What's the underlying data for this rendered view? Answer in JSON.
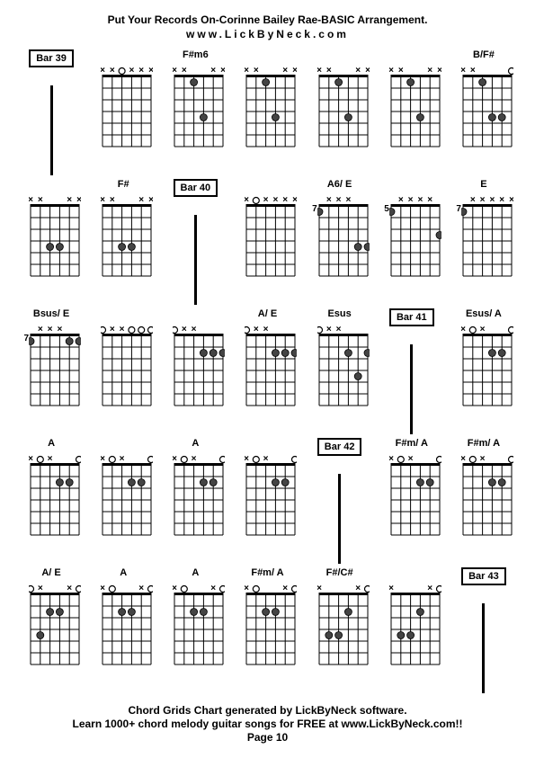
{
  "title": "Put Your Records On-Corinne Bailey Rae-BASIC Arrangement.",
  "url": "www.LickByNeck.com",
  "footer1": "Chord Grids Chart generated by LickByNeck software.",
  "footer2": "Learn 1000+ chord melody guitar songs for FREE at www.LickByNeck.com!!",
  "page": "Page 10",
  "diagram": {
    "strings": 6,
    "frets": 6,
    "width": 54,
    "height": 78,
    "marker_x": "×",
    "marker_o": "○",
    "dot_radius": 4,
    "colors": {
      "line": "#000000",
      "dot_fill": "#444444",
      "dot_stroke": "#000000",
      "open_stroke": "#000000"
    }
  },
  "cells": [
    {
      "type": "bar",
      "label": "Bar 39"
    },
    {
      "type": "chord",
      "label": "",
      "top": [
        "x",
        "x",
        "o",
        "x",
        "x",
        "x"
      ],
      "dots": [],
      "fret": ""
    },
    {
      "type": "chord",
      "label": "F#m6",
      "top": [
        "x",
        "x",
        "",
        "",
        "x",
        "x"
      ],
      "dots": [
        [
          3,
          1
        ],
        [
          4,
          4
        ]
      ],
      "fret": ""
    },
    {
      "type": "chord",
      "label": "",
      "top": [
        "x",
        "x",
        "",
        "",
        "x",
        "x"
      ],
      "dots": [
        [
          3,
          1
        ],
        [
          4,
          4
        ]
      ],
      "fret": ""
    },
    {
      "type": "chord",
      "label": "",
      "top": [
        "x",
        "x",
        "",
        "",
        "x",
        "x"
      ],
      "dots": [
        [
          3,
          1
        ],
        [
          4,
          4
        ]
      ],
      "fret": ""
    },
    {
      "type": "chord",
      "label": "",
      "top": [
        "x",
        "x",
        "",
        "",
        "x",
        "x"
      ],
      "dots": [
        [
          3,
          1
        ],
        [
          4,
          4
        ]
      ],
      "fret": ""
    },
    {
      "type": "chord",
      "label": "B/F#",
      "top": [
        "x",
        "x",
        "",
        "",
        "",
        "o"
      ],
      "dots": [
        [
          3,
          1
        ],
        [
          4,
          4
        ],
        [
          5,
          4
        ]
      ],
      "fret": ""
    },
    {
      "type": "chord",
      "label": "",
      "top": [
        "x",
        "x",
        "",
        "",
        "x",
        "x"
      ],
      "dots": [
        [
          3,
          4
        ],
        [
          4,
          4
        ]
      ],
      "fret": ""
    },
    {
      "type": "chord",
      "label": "F#",
      "top": [
        "x",
        "x",
        "",
        "",
        "x",
        "x"
      ],
      "dots": [
        [
          3,
          4
        ],
        [
          4,
          4
        ]
      ],
      "fret": ""
    },
    {
      "type": "bar",
      "label": "Bar 40"
    },
    {
      "type": "chord",
      "label": "",
      "top": [
        "x",
        "o",
        "x",
        "x",
        "x",
        "x"
      ],
      "dots": [],
      "fret": ""
    },
    {
      "type": "chord",
      "label": "A6/ E",
      "top": [
        "",
        "x",
        "x",
        "x",
        "",
        ""
      ],
      "dots": [
        [
          1,
          1
        ],
        [
          5,
          4
        ],
        [
          6,
          4
        ]
      ],
      "fret": "7"
    },
    {
      "type": "chord",
      "label": "",
      "top": [
        "",
        "x",
        "x",
        "x",
        "x",
        ""
      ],
      "dots": [
        [
          1,
          1
        ],
        [
          6,
          3
        ]
      ],
      "fret": "5"
    },
    {
      "type": "chord",
      "label": "E",
      "top": [
        "",
        "x",
        "x",
        "x",
        "x",
        "x"
      ],
      "dots": [
        [
          1,
          1
        ]
      ],
      "fret": "7"
    },
    {
      "type": "chord",
      "label": "Bsus/ E",
      "top": [
        "",
        "x",
        "x",
        "x",
        "",
        ""
      ],
      "dots": [
        [
          1,
          1
        ],
        [
          5,
          1
        ],
        [
          6,
          1
        ]
      ],
      "fret": "7"
    },
    {
      "type": "chord",
      "label": "",
      "top": [
        "o",
        "x",
        "x",
        "o",
        "o",
        "o"
      ],
      "dots": [],
      "fret": ""
    },
    {
      "type": "chord",
      "label": "",
      "top": [
        "o",
        "x",
        "x",
        "",
        "",
        ""
      ],
      "dots": [
        [
          4,
          2
        ],
        [
          5,
          2
        ],
        [
          6,
          2
        ]
      ],
      "fret": ""
    },
    {
      "type": "chord",
      "label": "A/ E",
      "top": [
        "o",
        "x",
        "x",
        "",
        "",
        ""
      ],
      "dots": [
        [
          4,
          2
        ],
        [
          5,
          2
        ],
        [
          6,
          2
        ]
      ],
      "fret": ""
    },
    {
      "type": "chord",
      "label": "Esus",
      "top": [
        "o",
        "x",
        "x",
        "",
        "",
        ""
      ],
      "dots": [
        [
          4,
          2
        ],
        [
          5,
          4
        ],
        [
          6,
          2
        ]
      ],
      "fret": ""
    },
    {
      "type": "bar",
      "label": "Bar 41"
    },
    {
      "type": "chord",
      "label": "Esus/ A",
      "top": [
        "x",
        "o",
        "x",
        "",
        "",
        "o"
      ],
      "dots": [
        [
          4,
          2
        ],
        [
          5,
          2
        ]
      ],
      "fret": ""
    },
    {
      "type": "chord",
      "label": "A",
      "top": [
        "x",
        "o",
        "x",
        "",
        "",
        "o"
      ],
      "dots": [
        [
          4,
          2
        ],
        [
          5,
          2
        ]
      ],
      "fret": ""
    },
    {
      "type": "chord",
      "label": "",
      "top": [
        "x",
        "o",
        "x",
        "",
        "",
        "o"
      ],
      "dots": [
        [
          4,
          2
        ],
        [
          5,
          2
        ]
      ],
      "fret": ""
    },
    {
      "type": "chord",
      "label": "A",
      "top": [
        "x",
        "o",
        "x",
        "",
        "",
        "o"
      ],
      "dots": [
        [
          4,
          2
        ],
        [
          5,
          2
        ]
      ],
      "fret": ""
    },
    {
      "type": "chord",
      "label": "",
      "top": [
        "x",
        "o",
        "x",
        "",
        "",
        "o"
      ],
      "dots": [
        [
          4,
          2
        ],
        [
          5,
          2
        ]
      ],
      "fret": ""
    },
    {
      "type": "bar",
      "label": "Bar 42"
    },
    {
      "type": "chord",
      "label": "F#m/ A",
      "top": [
        "x",
        "o",
        "x",
        "",
        "",
        "o"
      ],
      "dots": [
        [
          4,
          2
        ],
        [
          5,
          2
        ]
      ],
      "fret": ""
    },
    {
      "type": "chord",
      "label": "F#m/ A",
      "top": [
        "x",
        "o",
        "x",
        "",
        "",
        "o"
      ],
      "dots": [
        [
          4,
          2
        ],
        [
          5,
          2
        ]
      ],
      "fret": ""
    },
    {
      "type": "chord",
      "label": "A/ E",
      "top": [
        "o",
        "x",
        "",
        "",
        "x",
        "o"
      ],
      "dots": [
        [
          3,
          2
        ],
        [
          4,
          2
        ],
        [
          2,
          4
        ]
      ],
      "fret": ""
    },
    {
      "type": "chord",
      "label": "A",
      "top": [
        "x",
        "o",
        "",
        "",
        "x",
        "o"
      ],
      "dots": [
        [
          3,
          2
        ],
        [
          4,
          2
        ]
      ],
      "fret": ""
    },
    {
      "type": "chord",
      "label": "A",
      "top": [
        "x",
        "o",
        "",
        "",
        "x",
        "o"
      ],
      "dots": [
        [
          3,
          2
        ],
        [
          4,
          2
        ]
      ],
      "fret": ""
    },
    {
      "type": "chord",
      "label": "F#m/ A",
      "top": [
        "x",
        "o",
        "",
        "",
        "x",
        "o"
      ],
      "dots": [
        [
          3,
          2
        ],
        [
          4,
          2
        ]
      ],
      "fret": ""
    },
    {
      "type": "chord",
      "label": "F#/C#",
      "top": [
        "x",
        "",
        "",
        "",
        "x",
        "o"
      ],
      "dots": [
        [
          2,
          4
        ],
        [
          3,
          4
        ],
        [
          4,
          2
        ]
      ],
      "fret": ""
    },
    {
      "type": "chord",
      "label": "",
      "top": [
        "x",
        "",
        "",
        "",
        "x",
        "o"
      ],
      "dots": [
        [
          2,
          4
        ],
        [
          3,
          4
        ],
        [
          4,
          2
        ]
      ],
      "fret": ""
    },
    {
      "type": "bar",
      "label": "Bar 43"
    }
  ]
}
